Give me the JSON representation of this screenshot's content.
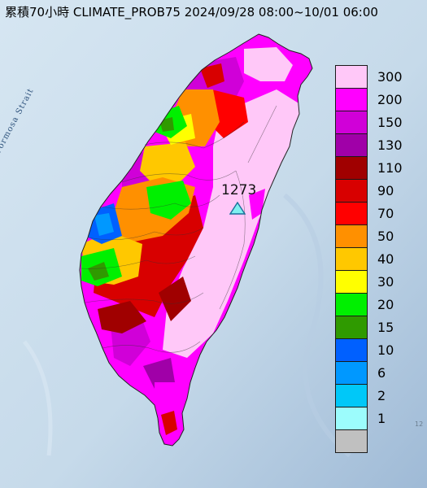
{
  "header": {
    "title": "累積70小時 CLIMATE_PROB75 2024/09/28 08:00~10/01 06:00"
  },
  "map": {
    "strait_label": "Formosa Strait",
    "peak_value": "1273",
    "edge_mark": "12"
  },
  "legend": {
    "items": [
      {
        "label": "300",
        "color": "#ffc8f8"
      },
      {
        "label": "200",
        "color": "#ff00ff"
      },
      {
        "label": "150",
        "color": "#d000d8"
      },
      {
        "label": "130",
        "color": "#a000a8"
      },
      {
        "label": "110",
        "color": "#a00000"
      },
      {
        "label": "90",
        "color": "#d80000"
      },
      {
        "label": "70",
        "color": "#ff0000"
      },
      {
        "label": "50",
        "color": "#ff9000"
      },
      {
        "label": "40",
        "color": "#ffc800"
      },
      {
        "label": "30",
        "color": "#ffff00"
      },
      {
        "label": "20",
        "color": "#00f000"
      },
      {
        "label": "15",
        "color": "#2f9a00"
      },
      {
        "label": "10",
        "color": "#0060ff"
      },
      {
        "label": "6",
        "color": "#0098ff"
      },
      {
        "label": "2",
        "color": "#00c8f8"
      },
      {
        "label": "1",
        "color": "#9cfcfc"
      },
      {
        "label": "",
        "color": "#c0c0c0"
      }
    ]
  }
}
